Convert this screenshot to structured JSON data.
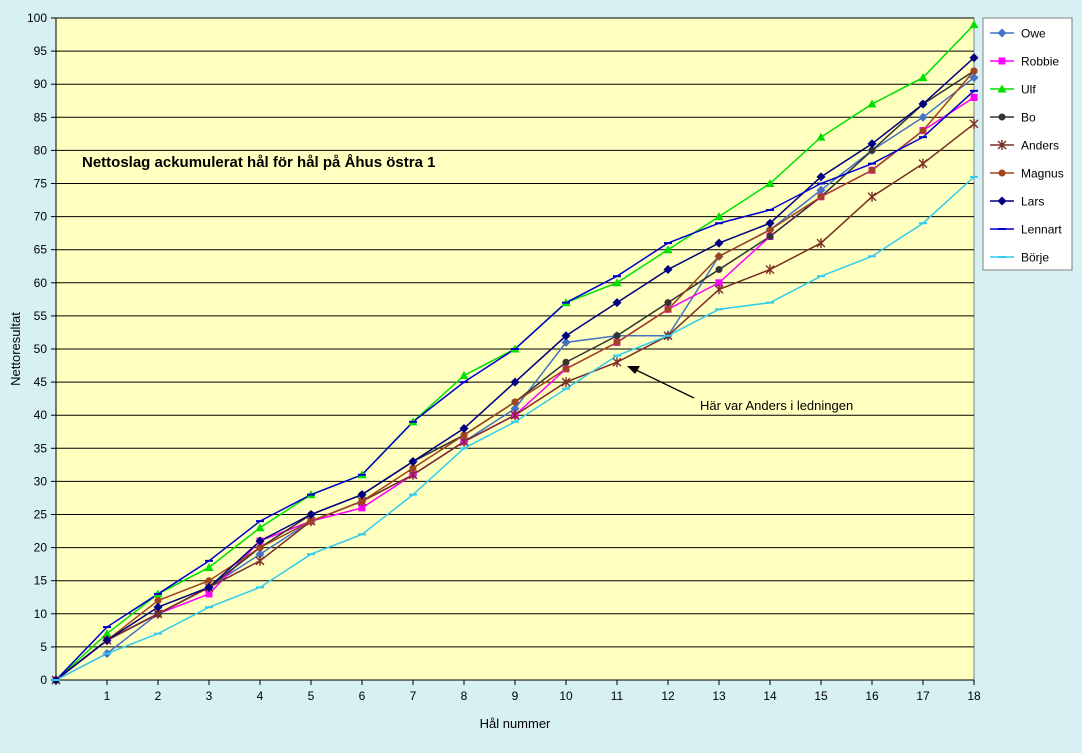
{
  "chart_data": {
    "type": "line",
    "title": "Nettoslag ackumulerat hål för hål på Åhus östra 1",
    "xlabel": "Hål nummer",
    "ylabel": "Nettoresultat",
    "x": [
      0,
      1,
      2,
      3,
      4,
      5,
      6,
      7,
      8,
      9,
      10,
      11,
      12,
      13,
      14,
      15,
      16,
      17,
      18
    ],
    "x_tick_labels": [
      "1",
      "2",
      "3",
      "4",
      "5",
      "6",
      "7",
      "8",
      "9",
      "10",
      "11",
      "12",
      "13",
      "14",
      "15",
      "16",
      "17",
      "18"
    ],
    "ylim": [
      0,
      100
    ],
    "y_ticks": [
      0,
      5,
      10,
      15,
      20,
      25,
      30,
      35,
      40,
      45,
      50,
      55,
      60,
      65,
      70,
      75,
      80,
      85,
      90,
      95,
      100
    ],
    "grid": "horizontal",
    "legend_position": "right",
    "series": [
      {
        "name": "Owe",
        "color": "#4472c4",
        "marker": "diamond",
        "values": [
          0,
          4,
          10,
          14,
          19,
          24,
          27,
          31,
          36,
          41,
          51,
          52,
          52,
          64,
          68,
          74,
          80,
          85,
          91
        ]
      },
      {
        "name": "Robbie",
        "color": "#ff00ff",
        "marker": "square",
        "values": [
          0,
          6,
          10,
          13,
          21,
          24,
          26,
          31,
          36,
          40,
          47,
          51,
          56,
          60,
          67,
          73,
          77,
          83,
          88
        ]
      },
      {
        "name": "Ulf",
        "color": "#00e000",
        "marker": "triangle",
        "values": [
          0,
          7,
          13,
          17,
          23,
          28,
          31,
          39,
          46,
          50,
          57,
          60,
          65,
          70,
          75,
          82,
          87,
          91,
          99
        ]
      },
      {
        "name": "Bo",
        "color": "#333333",
        "marker": "circle",
        "values": [
          0,
          6,
          10,
          14,
          20,
          25,
          28,
          33,
          37,
          42,
          48,
          52,
          57,
          62,
          67,
          73,
          80,
          87,
          92
        ]
      },
      {
        "name": "Anders",
        "color": "#7b2d26",
        "marker": "star",
        "values": [
          0,
          6,
          10,
          14,
          18,
          24,
          27,
          31,
          36,
          40,
          45,
          48,
          52,
          59,
          62,
          66,
          73,
          78,
          84
        ]
      },
      {
        "name": "Magnus",
        "color": "#a0441c",
        "marker": "circle",
        "values": [
          0,
          6,
          12,
          15,
          20,
          24,
          27,
          32,
          37,
          42,
          47,
          51,
          56,
          64,
          68,
          73,
          77,
          83,
          92
        ]
      },
      {
        "name": "Lars",
        "color": "#000080",
        "marker": "diamond",
        "values": [
          0,
          6,
          11,
          14,
          21,
          25,
          28,
          33,
          38,
          45,
          52,
          57,
          62,
          66,
          69,
          76,
          81,
          87,
          94
        ]
      },
      {
        "name": "Lennart",
        "color": "#0000cc",
        "marker": "dash",
        "values": [
          0,
          8,
          13,
          18,
          24,
          28,
          31,
          39,
          45,
          50,
          57,
          61,
          66,
          69,
          71,
          75,
          78,
          82,
          89
        ]
      },
      {
        "name": "Börje",
        "color": "#33ccee",
        "marker": "dash",
        "values": [
          0,
          4,
          7,
          11,
          14,
          19,
          22,
          28,
          35,
          39,
          44,
          49,
          52,
          56,
          57,
          61,
          64,
          69,
          76
        ]
      }
    ],
    "annotation": {
      "text": "Här var Anders i ledningen",
      "x": 11.2,
      "y": 48
    }
  },
  "colors": {
    "plot_background": "#ffffc0",
    "outer_background": "#d6f0f4",
    "gridline": "#000000",
    "legend_background": "#ffffff"
  }
}
